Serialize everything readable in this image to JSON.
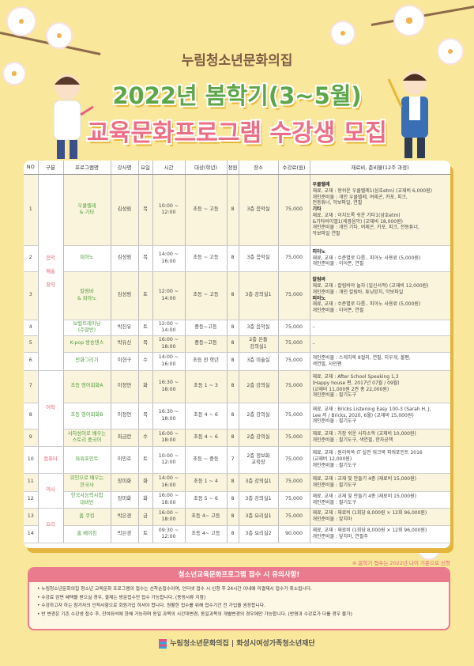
{
  "header": {
    "org": "누림청소년문화의집",
    "title1": "2022년 봄학기(3~5월)",
    "title2": "교육문화프로그램 수강생 모집"
  },
  "table": {
    "columns": [
      "NO",
      "구분",
      "프로그램명",
      "강사명",
      "요일",
      "시간",
      "대상(학년)",
      "정원",
      "장소",
      "수강료(원)",
      "재료비, 준비물(12주 과정)"
    ],
    "categories": [
      "음악\n·\n예술\n·\n창작",
      "어학",
      "컴퓨터",
      "역사",
      "요리"
    ],
    "rows": [
      {
        "no": "1",
        "program": "우쿨렐레\n& 기타",
        "teacher": "김성림",
        "day": "목",
        "time": "10:00 ~\n12:00",
        "target": "초등 ~ 고등",
        "cap": "8",
        "place": "3층 음악실",
        "fee": "75,000",
        "mat": [
          {
            "t": "우쿨렐레",
            "d": "재료, 교재 : 왕쉬운 우쿨렐레1(삼호etm) (교재비 6,000원)\n개인준비물 : 개인 우쿨렐레, 여제곤, 카포, 피크,\n전동튜너, 악보파일, 연필"
          },
          {
            "t": "기타",
            "d": "재료, 교재 : 이치도록 쉬운 기타1(삼호etm)\n&기타바이엘1(세광음악) (교재비 18,000원)\n개인준비물 : 개인 기타, 여제곤, 카포, 피크, 전동튜너,\n악보파일 연필"
          }
        ]
      },
      {
        "no": "2",
        "program": "피아노",
        "teacher": "김성림",
        "day": "목",
        "time": "14:00 ~\n16:00",
        "target": "초등 ~ 고등",
        "cap": "8",
        "place": "3층 음악실",
        "fee": "75,000",
        "mat": [
          {
            "t": "피아노",
            "d": "재료, 교재 : 수준별로 다름.. 피아노 사용료 (5,000원)\n개인준비물 : 이어폰, 연필"
          }
        ]
      },
      {
        "no": "3",
        "program": "칼림바\n& 피아노",
        "teacher": "김성림",
        "day": "토",
        "time": "12:00 ~\n14:00",
        "target": "초등 ~ 고등",
        "cap": "8",
        "place": "3층 강의실1",
        "fee": "75,000",
        "mat": [
          {
            "t": "칼림바",
            "d": "재료, 교재 : 칼림바야 놀자 (일신서적) (교재비 12,000원)\n개인준비물 : 개인 칼림바, 튜닝망치, 악보파일"
          },
          {
            "t": "피아노",
            "d": "재료, 교재 : 수준별로 다름.. 피아노 사용료 (5,000원)\n개인준비물 : 이어폰, 연필"
          }
        ]
      },
      {
        "no": "4",
        "program": "보컬트레이닝\n(주말반)",
        "teacher": "박진유",
        "day": "토",
        "time": "12:00 ~\n14:00",
        "target": "중등~고등",
        "cap": "8",
        "place": "3층 음악실",
        "fee": "75,000",
        "mat": [
          {
            "t": "",
            "d": "–"
          }
        ]
      },
      {
        "no": "5",
        "program": "K-pop 방송댄스",
        "teacher": "박유신",
        "day": "목",
        "time": "16:00 ~\n18:00",
        "target": "중등~고등",
        "cap": "8",
        "place": "2층 온돌\n강의실1",
        "fee": "75,000",
        "mat": [
          {
            "t": "",
            "d": "–"
          }
        ]
      },
      {
        "no": "6",
        "program": "만화그리기",
        "teacher": "이현구",
        "day": "수",
        "time": "14:00 ~\n16:00",
        "target": "초등 전 학년",
        "cap": "8",
        "place": "3층 미술실",
        "fee": "75,000",
        "mat": [
          {
            "t": "",
            "d": "개인준비물 : 스케치북 8절지, 연필, 지우개, 볼펜,\n색연필, 사인펜"
          }
        ]
      },
      {
        "no": "7",
        "program": "초등 영어회화A",
        "teacher": "이정연",
        "day": "화",
        "time": "16:30 ~\n18:00",
        "target": "초등 1 ~ 3",
        "cap": "8",
        "place": "2층 강의실",
        "fee": "75,000",
        "mat": [
          {
            "t": "",
            "d": "재료, 교재 : After School Speaking 1,3\n(Happy house 편, 2017년 07월 / 09월)\n(교재비 11,000원 2권 총 22,000원)\n개인준비물 : 필기도구"
          }
        ]
      },
      {
        "no": "8",
        "program": "초등 영어회화B",
        "teacher": "이정연",
        "day": "목",
        "time": "16:30 ~\n18:00",
        "target": "초등 4 ~ 6",
        "cap": "8",
        "place": "2층 강의실",
        "fee": "75,000",
        "mat": [
          {
            "t": "",
            "d": "재료, 교재 : Bricks Listening Easy 100-3 (Sarah H, J,\nLee 저 / Bricks, 2020, 6월) (교재비 15,000원)\n개인준비물 : 필기도구"
          }
        ]
      },
      {
        "no": "9",
        "program": "사자성어로 배우는\n스토리 중국어",
        "teacher": "최금런",
        "day": "수",
        "time": "16:00 ~\n18:00",
        "target": "초등 4 ~ 6",
        "cap": "8",
        "place": "2층 강의실",
        "fee": "75,000",
        "mat": [
          {
            "t": "",
            "d": "재료, 교재 : 가장 쉬운 사자소학 (교재비 10,000원)\n개인준비물 : 필기도구, 색연필, 한자공책"
          }
        ]
      },
      {
        "no": "10",
        "program": "파워포인트",
        "teacher": "이민호",
        "day": "토",
        "time": "10:00 ~\n12:00",
        "target": "초등 ~ 중등",
        "cap": "7",
        "place": "2층 정보화\n교육장",
        "fee": "75,000",
        "mat": [
          {
            "t": "",
            "d": "재료, 교재 : 원리쏙쏙 IT 실전 워크북 파워포인트 2016\n(교재비 12,000원)\n개인준비물 : 필기도구"
          }
        ]
      },
      {
        "no": "11",
        "program": "위인으로 배우는\n한국사",
        "teacher": "장미화",
        "day": "화",
        "time": "14:00 ~\n16:00",
        "target": "초등 1 ~ 4",
        "cap": "8",
        "place": "3층 강의실1",
        "fee": "75,000",
        "mat": [
          {
            "t": "",
            "d": "재료, 교재 : 교재 및 만들기 4종 (재료비 15,000원)\n개인준비물 : 필기도구"
          }
        ]
      },
      {
        "no": "12",
        "program": "한국사능력시험\n대비반",
        "teacher": "장미화",
        "day": "화",
        "time": "16:00 ~\n18:00",
        "target": "초등 5 ~ 6",
        "cap": "8",
        "place": "3층 강의실1",
        "fee": "75,000",
        "mat": [
          {
            "t": "",
            "d": "재료, 교재 : 교재 및 만들기 4종 (재료비 15,000원)\n개인준비물 : 필기도구"
          }
        ]
      },
      {
        "no": "13",
        "program": "홈 쿠킹",
        "teacher": "박은경",
        "day": "금",
        "time": "16:00 ~\n18:00",
        "target": "초등 4~ 고등",
        "cap": "8",
        "place": "3층 요리실1",
        "fee": "75,000",
        "mat": [
          {
            "t": "",
            "d": "재료, 교재 : 재료비 (1회당 8,000원 × 12회 96,000원)\n개인준비물 : 앞치마"
          }
        ]
      },
      {
        "no": "14",
        "program": "홈 베이킹",
        "teacher": "박은경",
        "day": "토",
        "time": "09:30 ~\n12:00",
        "target": "초등 4~ 고등",
        "cap": "8",
        "place": "3층 요리실2",
        "fee": "90,000",
        "mat": [
          {
            "t": "",
            "d": "재료, 교재 : 재료비 (1회당 8,000원 × 12회 96,000원)\n개인준비물 : 앞치마, 연필주"
          }
        ]
      }
    ]
  },
  "note": "※ 봄학기 접수는 2022년 나이 기준으로 신청",
  "notice": {
    "title": "청소년교육문화프로그램 접수 시 유의사항!",
    "items": [
      "누림청소년문화의집 청소년 교육문화 프로그램의 접수는 선착순접수이며, 인터넷 접수 시 신청 후 24시간 이내에 미결제시 접수가 취소됩니다.",
      "수강료 감면 혜택을 받으실 경우, 결제는 방문접수만 접수 가능합니다. (증빙서류 지참)",
      "수강하고자 하는 참가자의 인적사항으로 회원가입 하셔야 합니다. 원활한 접수를 위해 접수기간 전 가입을 권장합니다.",
      "반 변경은 기존 수강생 접수 후, 잔여좌석에 한해 가능하며 동일 과목의 시간대변경, 동일과목의 개별변경의 경우에만 가능합니다. (반명과 수강료가 다를 경우 불가)"
    ]
  },
  "footer": "누림청소년문화의집 | 화성시여성가족청소년재단"
}
